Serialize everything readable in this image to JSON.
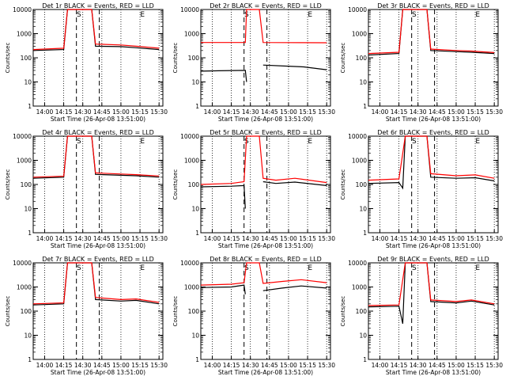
{
  "chart_data": [
    {
      "type": "line",
      "title": "Det 1r BLACK = Events, RED = LLD",
      "xlabel": "Start Time (26-Apr-08 13:51:00)",
      "ylabel": "Counts/sec",
      "ylog": true,
      "ylim": [
        1,
        10000
      ],
      "xlim": [
        "13:51",
        "15:33"
      ],
      "xticks": [
        "14:00",
        "14:15",
        "14:30",
        "14:45",
        "15:00",
        "15:15",
        "15:30"
      ],
      "yticks": [
        "1",
        "10",
        "100",
        "1000",
        "10000"
      ],
      "markers": [
        {
          "x": "14:27",
          "label": "S"
        },
        {
          "x": "15:17",
          "label": "E"
        }
      ],
      "series": [
        {
          "color": "#000000",
          "points": [
            [
              "13:51",
              200
            ],
            [
              "14:15",
              220
            ],
            [
              "14:18",
              10000
            ],
            [
              "14:37",
              10000
            ],
            [
              "14:40",
              300
            ],
            [
              "15:00",
              290
            ],
            [
              "15:12",
              260
            ],
            [
              "15:30",
              220
            ]
          ]
        },
        {
          "color": "#ff0000",
          "points": [
            [
              "13:51",
              220
            ],
            [
              "14:15",
              250
            ],
            [
              "14:18",
              10000
            ],
            [
              "14:37",
              10000
            ],
            [
              "14:40",
              370
            ],
            [
              "15:00",
              340
            ],
            [
              "15:12",
              300
            ],
            [
              "15:30",
              250
            ]
          ]
        }
      ]
    },
    {
      "type": "line",
      "title": "Det 2r BLACK = Events, RED = LLD",
      "xlabel": "Start Time (26-Apr-08 13:51:00)",
      "ylabel": "Counts/sec",
      "ylog": true,
      "ylim": [
        1,
        10000
      ],
      "xlim": [
        "13:51",
        "15:33"
      ],
      "xticks": [
        "14:00",
        "14:15",
        "14:30",
        "14:45",
        "15:00",
        "15:15",
        "15:30"
      ],
      "yticks": [
        "1",
        "10",
        "100",
        "1000",
        "10000"
      ],
      "markers": [
        {
          "x": "14:27",
          "label": "S"
        },
        {
          "x": "15:17",
          "label": "E"
        }
      ],
      "series": [
        {
          "color": "#000000",
          "points": [
            [
              "13:51",
              28
            ],
            [
              "14:05",
              29
            ],
            [
              "14:26",
              30
            ],
            [
              "14:27",
              10
            ],
            [
              "14:37",
              null
            ],
            [
              "14:40",
              50
            ],
            [
              "15:00",
              45
            ],
            [
              "15:12",
              42
            ],
            [
              "15:30",
              32
            ]
          ]
        },
        {
          "color": "#ff0000",
          "points": [
            [
              "13:51",
              430
            ],
            [
              "14:26",
              430
            ],
            [
              "14:27",
              10000
            ],
            [
              "14:37",
              10000
            ],
            [
              "14:40",
              430
            ],
            [
              "15:30",
              420
            ]
          ]
        }
      ]
    },
    {
      "type": "line",
      "title": "Det 3r BLACK = Events, RED = LLD",
      "xlabel": "Start Time (26-Apr-08 13:51:00)",
      "ylabel": "Counts/sec",
      "ylog": true,
      "ylim": [
        1,
        10000
      ],
      "xlim": [
        "13:51",
        "15:33"
      ],
      "xticks": [
        "14:00",
        "14:15",
        "14:30",
        "14:45",
        "15:00",
        "15:15",
        "15:30"
      ],
      "yticks": [
        "1",
        "10",
        "100",
        "1000",
        "10000"
      ],
      "markers": [
        {
          "x": "14:27",
          "label": "S"
        },
        {
          "x": "15:17",
          "label": "E"
        }
      ],
      "series": [
        {
          "color": "#000000",
          "points": [
            [
              "13:51",
              130
            ],
            [
              "14:15",
              150
            ],
            [
              "14:18",
              10000
            ],
            [
              "14:37",
              10000
            ],
            [
              "14:40",
              200
            ],
            [
              "15:00",
              180
            ],
            [
              "15:12",
              170
            ],
            [
              "15:30",
              150
            ]
          ]
        },
        {
          "color": "#ff0000",
          "points": [
            [
              "13:51",
              150
            ],
            [
              "14:15",
              170
            ],
            [
              "14:18",
              10000
            ],
            [
              "14:37",
              10000
            ],
            [
              "14:40",
              230
            ],
            [
              "15:00",
              200
            ],
            [
              "15:12",
              190
            ],
            [
              "15:30",
              165
            ]
          ]
        }
      ]
    },
    {
      "type": "line",
      "title": "Det 4r BLACK = Events, RED = LLD",
      "xlabel": "Start Time (26-Apr-08 13:51:00)",
      "ylabel": "Counts/sec",
      "ylog": true,
      "ylim": [
        1,
        10000
      ],
      "xlim": [
        "13:51",
        "15:33"
      ],
      "xticks": [
        "14:00",
        "14:15",
        "14:30",
        "14:45",
        "15:00",
        "15:15",
        "15:30"
      ],
      "yticks": [
        "1",
        "10",
        "100",
        "1000",
        "10000"
      ],
      "markers": [
        {
          "x": "14:27",
          "label": "S"
        },
        {
          "x": "15:17",
          "label": "E"
        }
      ],
      "series": [
        {
          "color": "#000000",
          "points": [
            [
              "13:51",
              180
            ],
            [
              "14:15",
              200
            ],
            [
              "14:18",
              10000
            ],
            [
              "14:37",
              10000
            ],
            [
              "14:40",
              260
            ],
            [
              "15:00",
              240
            ],
            [
              "15:12",
              230
            ],
            [
              "15:30",
              200
            ]
          ]
        },
        {
          "color": "#ff0000",
          "points": [
            [
              "13:51",
              200
            ],
            [
              "14:15",
              220
            ],
            [
              "14:18",
              10000
            ],
            [
              "14:37",
              10000
            ],
            [
              "14:40",
              300
            ],
            [
              "15:00",
              270
            ],
            [
              "15:12",
              255
            ],
            [
              "15:30",
              225
            ]
          ]
        }
      ]
    },
    {
      "type": "line",
      "title": "Det 5r BLACK = Events, RED = LLD",
      "xlabel": "Start Time (26-Apr-08 13:51:00)",
      "ylabel": "Counts/sec",
      "ylog": true,
      "ylim": [
        1,
        10000
      ],
      "xlim": [
        "13:51",
        "15:33"
      ],
      "xticks": [
        "14:00",
        "14:15",
        "14:30",
        "14:45",
        "15:00",
        "15:15",
        "15:30"
      ],
      "yticks": [
        "1",
        "10",
        "100",
        "1000",
        "10000"
      ],
      "markers": [
        {
          "x": "14:27",
          "label": "S"
        },
        {
          "x": "15:17",
          "label": "E"
        }
      ],
      "series": [
        {
          "color": "#000000",
          "points": [
            [
              "13:51",
              80
            ],
            [
              "14:15",
              85
            ],
            [
              "14:25",
              90
            ],
            [
              "14:26",
              10
            ],
            [
              "14:37",
              null
            ],
            [
              "14:40",
              130
            ],
            [
              "14:50",
              110
            ],
            [
              "15:05",
              125
            ],
            [
              "15:30",
              90
            ]
          ]
        },
        {
          "color": "#ff0000",
          "points": [
            [
              "13:51",
              100
            ],
            [
              "14:15",
              110
            ],
            [
              "14:25",
              130
            ],
            [
              "14:27",
              10000
            ],
            [
              "14:37",
              10000
            ],
            [
              "14:40",
              180
            ],
            [
              "14:50",
              150
            ],
            [
              "15:05",
              180
            ],
            [
              "15:30",
              120
            ]
          ]
        }
      ]
    },
    {
      "type": "line",
      "title": "Det 6r BLACK = Events, RED = LLD",
      "xlabel": "Start Time (26-Apr-08 13:51:00)",
      "ylabel": "Counts/sec",
      "ylog": true,
      "ylim": [
        1,
        10000
      ],
      "xlim": [
        "13:51",
        "15:33"
      ],
      "xticks": [
        "14:00",
        "14:15",
        "14:30",
        "14:45",
        "15:00",
        "15:15",
        "15:30"
      ],
      "yticks": [
        "1",
        "10",
        "100",
        "1000",
        "10000"
      ],
      "markers": [
        {
          "x": "14:27",
          "label": "S"
        },
        {
          "x": "15:17",
          "label": "E"
        }
      ],
      "series": [
        {
          "color": "#000000",
          "points": [
            [
              "13:51",
              110
            ],
            [
              "14:15",
              120
            ],
            [
              "14:18",
              70
            ],
            [
              "14:20",
              10000
            ],
            [
              "14:37",
              10000
            ],
            [
              "14:40",
              200
            ],
            [
              "15:00",
              180
            ],
            [
              "15:15",
              190
            ],
            [
              "15:30",
              140
            ]
          ]
        },
        {
          "color": "#ff0000",
          "points": [
            [
              "13:51",
              150
            ],
            [
              "14:15",
              170
            ],
            [
              "14:20",
              10000
            ],
            [
              "14:37",
              10000
            ],
            [
              "14:40",
              280
            ],
            [
              "15:00",
              230
            ],
            [
              "15:15",
              250
            ],
            [
              "15:30",
              180
            ]
          ]
        }
      ]
    },
    {
      "type": "line",
      "title": "Det 7r BLACK = Events, RED = LLD",
      "xlabel": "Start Time (26-Apr-08 13:51:00)",
      "ylabel": "Counts/sec",
      "ylog": true,
      "ylim": [
        1,
        10000
      ],
      "xlim": [
        "13:51",
        "15:33"
      ],
      "xticks": [
        "14:00",
        "14:15",
        "14:30",
        "14:45",
        "15:00",
        "15:15",
        "15:30"
      ],
      "yticks": [
        "1",
        "10",
        "100",
        "1000",
        "10000"
      ],
      "markers": [
        {
          "x": "14:27",
          "label": "S"
        },
        {
          "x": "15:17",
          "label": "E"
        }
      ],
      "series": [
        {
          "color": "#000000",
          "points": [
            [
              "13:51",
              180
            ],
            [
              "14:15",
              200
            ],
            [
              "14:18",
              10000
            ],
            [
              "14:37",
              10000
            ],
            [
              "14:40",
              300
            ],
            [
              "15:00",
              260
            ],
            [
              "15:12",
              280
            ],
            [
              "15:30",
              200
            ]
          ]
        },
        {
          "color": "#ff0000",
          "points": [
            [
              "13:51",
              200
            ],
            [
              "14:15",
              220
            ],
            [
              "14:18",
              10000
            ],
            [
              "14:37",
              10000
            ],
            [
              "14:40",
              370
            ],
            [
              "15:00",
              300
            ],
            [
              "15:12",
              320
            ],
            [
              "15:30",
              230
            ]
          ]
        }
      ]
    },
    {
      "type": "line",
      "title": "Det 8r BLACK = Events, RED = LLD",
      "xlabel": "Start Time (26-Apr-08 13:51:00)",
      "ylabel": "Counts/sec",
      "ylog": true,
      "ylim": [
        1,
        10000
      ],
      "xlim": [
        "13:51",
        "15:33"
      ],
      "xticks": [
        "14:00",
        "14:15",
        "14:30",
        "14:45",
        "15:00",
        "15:15",
        "15:30"
      ],
      "yticks": [
        "1",
        "10",
        "100",
        "1000",
        "10000"
      ],
      "markers": [
        {
          "x": "14:27",
          "label": "S"
        },
        {
          "x": "15:17",
          "label": "E"
        }
      ],
      "series": [
        {
          "color": "#000000",
          "points": [
            [
              "13:51",
              950
            ],
            [
              "14:15",
              1000
            ],
            [
              "14:25",
              1200
            ],
            [
              "14:26",
              500
            ],
            [
              "14:37",
              null
            ],
            [
              "14:40",
              700
            ],
            [
              "14:55",
              900
            ],
            [
              "15:10",
              1100
            ],
            [
              "15:30",
              900
            ]
          ]
        },
        {
          "color": "#ff0000",
          "points": [
            [
              "13:51",
              1200
            ],
            [
              "14:15",
              1300
            ],
            [
              "14:25",
              1500
            ],
            [
              "14:27",
              10000
            ],
            [
              "14:37",
              10000
            ],
            [
              "14:40",
              1400
            ],
            [
              "14:55",
              1700
            ],
            [
              "15:10",
              2000
            ],
            [
              "15:30",
              1500
            ]
          ]
        }
      ]
    },
    {
      "type": "line",
      "title": "Det 9r BLACK = Events, RED = LLD",
      "xlabel": "Start Time (26-Apr-08 13:51:00)",
      "ylabel": "Counts/sec",
      "ylog": true,
      "ylim": [
        1,
        10000
      ],
      "xlim": [
        "13:51",
        "15:33"
      ],
      "xticks": [
        "14:00",
        "14:15",
        "14:30",
        "14:45",
        "15:00",
        "15:15",
        "15:30"
      ],
      "yticks": [
        "1",
        "10",
        "100",
        "1000",
        "10000"
      ],
      "markers": [
        {
          "x": "14:27",
          "label": "S"
        },
        {
          "x": "15:17",
          "label": "E"
        }
      ],
      "series": [
        {
          "color": "#000000",
          "points": [
            [
              "13:51",
              150
            ],
            [
              "14:15",
              160
            ],
            [
              "14:18",
              30
            ],
            [
              "14:20",
              10000
            ],
            [
              "14:37",
              10000
            ],
            [
              "14:40",
              250
            ],
            [
              "15:00",
              220
            ],
            [
              "15:12",
              260
            ],
            [
              "15:30",
              180
            ]
          ]
        },
        {
          "color": "#ff0000",
          "points": [
            [
              "13:51",
              170
            ],
            [
              "14:15",
              180
            ],
            [
              "14:20",
              10000
            ],
            [
              "14:37",
              10000
            ],
            [
              "14:40",
              290
            ],
            [
              "15:00",
              250
            ],
            [
              "15:12",
              290
            ],
            [
              "15:30",
              200
            ]
          ]
        }
      ]
    }
  ]
}
